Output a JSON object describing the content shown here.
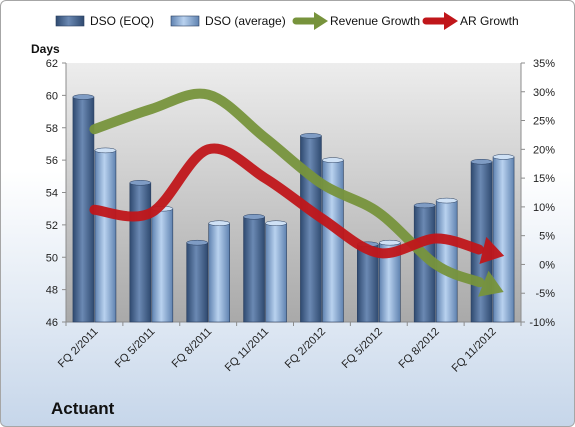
{
  "company": "Actuant",
  "chart_data": {
    "type": "bar",
    "categories": [
      "FQ 2/2011",
      "FQ 5/2011",
      "FQ 8/2011",
      "FQ 11/2011",
      "FQ 2/2012",
      "FQ 5/2012",
      "FQ 8/2012",
      "FQ 11/2012"
    ],
    "ylabel": "Days",
    "ylim": [
      46,
      62
    ],
    "yticks": [
      46,
      48,
      50,
      52,
      54,
      56,
      58,
      60,
      62
    ],
    "y2lim": [
      -10,
      35
    ],
    "y2ticks": [
      "-10%",
      "-5%",
      "0%",
      "5%",
      "10%",
      "15%",
      "20%",
      "25%",
      "30%",
      "35%"
    ],
    "grid": false,
    "legend_position": "top",
    "series": [
      {
        "name": "DSO (EOQ)",
        "kind": "bar",
        "color": "#4f6d96",
        "values": [
          59.9,
          54.6,
          50.9,
          52.5,
          57.5,
          50.8,
          53.2,
          55.9
        ]
      },
      {
        "name": "DSO (average)",
        "kind": "bar",
        "color": "#93b4dc",
        "values": [
          56.6,
          53.0,
          52.1,
          52.1,
          56.0,
          50.9,
          53.5,
          56.2
        ]
      },
      {
        "name": "Revenue Growth",
        "kind": "arrow-line",
        "color": "#77933c",
        "axis": "secondary",
        "values": [
          23.5,
          27,
          29.5,
          22,
          14,
          9,
          0,
          -4
        ]
      },
      {
        "name": "AR Growth",
        "kind": "arrow-line",
        "color": "#c0161a",
        "axis": "secondary",
        "values": [
          9.5,
          9,
          20,
          15,
          8,
          2,
          4.5,
          2
        ]
      }
    ]
  }
}
